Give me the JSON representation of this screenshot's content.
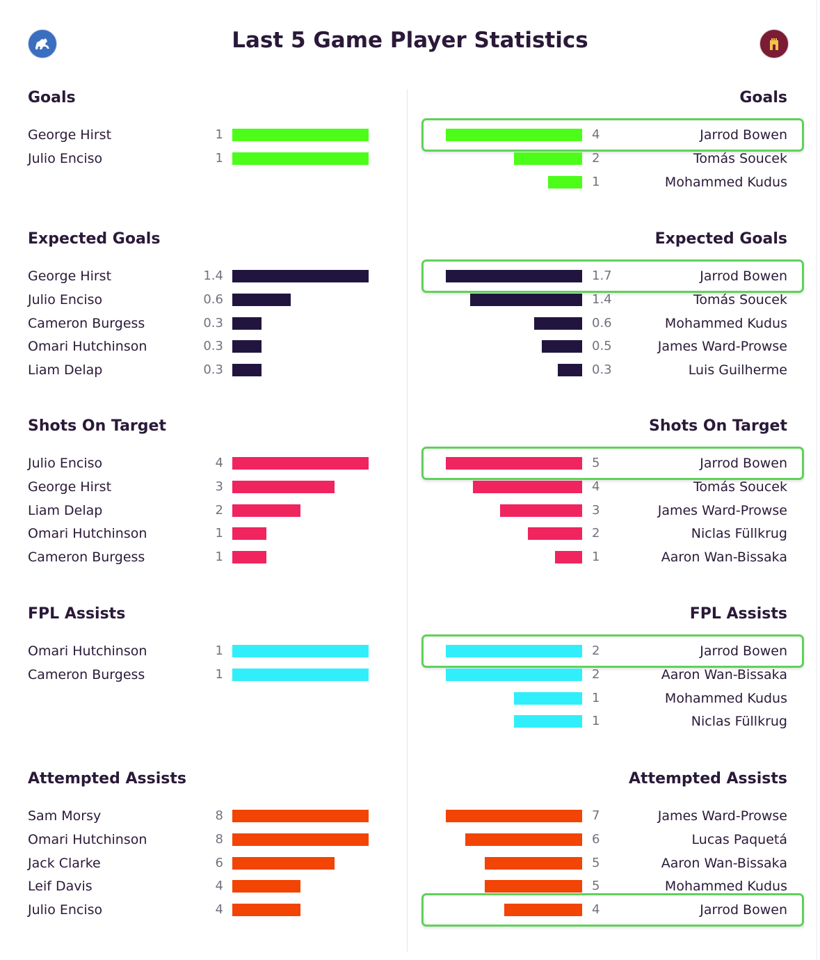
{
  "title": "Last 5 Game Player Statistics",
  "badges": {
    "left": "horse-crest-icon",
    "right": "castle-crest-icon"
  },
  "colors": {
    "goals": "#4cfd1a",
    "expected_goals": "#211540",
    "shots_on_target": "#f0245e",
    "fpl_assists": "#30effa",
    "attempted_assists": "#f24404",
    "highlight": "#5fd15a"
  },
  "chart_data": [
    {
      "type": "bar",
      "orientation": "horizontal",
      "key": "goals",
      "title": "Goals",
      "side": "left",
      "categories": [
        "George Hirst",
        "Julio Enciso"
      ],
      "values": [
        1,
        1
      ],
      "labels": [
        "1",
        "1"
      ]
    },
    {
      "type": "bar",
      "orientation": "horizontal",
      "key": "goals",
      "title": "Goals",
      "side": "right",
      "categories": [
        "Jarrod Bowen",
        "Tomás Soucek",
        "Mohammed Kudus"
      ],
      "values": [
        4,
        2,
        1
      ],
      "labels": [
        "4",
        "2",
        "1"
      ],
      "highlight": "Jarrod Bowen"
    },
    {
      "type": "bar",
      "orientation": "horizontal",
      "key": "expected_goals",
      "title": "Expected Goals",
      "side": "left",
      "categories": [
        "George Hirst",
        "Julio Enciso",
        "Cameron Burgess",
        "Omari Hutchinson",
        "Liam Delap"
      ],
      "values": [
        1.4,
        0.6,
        0.3,
        0.3,
        0.3
      ],
      "labels": [
        "1.4",
        "0.6",
        "0.3",
        "0.3",
        "0.3"
      ]
    },
    {
      "type": "bar",
      "orientation": "horizontal",
      "key": "expected_goals",
      "title": "Expected Goals",
      "side": "right",
      "categories": [
        "Jarrod Bowen",
        "Tomás Soucek",
        "Mohammed Kudus",
        "James Ward-Prowse",
        "Luis Guilherme"
      ],
      "values": [
        1.7,
        1.4,
        0.6,
        0.5,
        0.3
      ],
      "labels": [
        "1.7",
        "1.4",
        "0.6",
        "0.5",
        "0.3"
      ],
      "highlight": "Jarrod Bowen"
    },
    {
      "type": "bar",
      "orientation": "horizontal",
      "key": "shots_on_target",
      "title": "Shots On Target",
      "side": "left",
      "categories": [
        "Julio Enciso",
        "George Hirst",
        "Liam Delap",
        "Omari Hutchinson",
        "Cameron Burgess"
      ],
      "values": [
        4,
        3,
        2,
        1,
        1
      ],
      "labels": [
        "4",
        "3",
        "2",
        "1",
        "1"
      ]
    },
    {
      "type": "bar",
      "orientation": "horizontal",
      "key": "shots_on_target",
      "title": "Shots On Target",
      "side": "right",
      "categories": [
        "Jarrod Bowen",
        "Tomás Soucek",
        "James Ward-Prowse",
        "Niclas Füllkrug",
        "Aaron Wan-Bissaka"
      ],
      "values": [
        5,
        4,
        3,
        2,
        1
      ],
      "labels": [
        "5",
        "4",
        "3",
        "2",
        "1"
      ],
      "highlight": "Jarrod Bowen"
    },
    {
      "type": "bar",
      "orientation": "horizontal",
      "key": "fpl_assists",
      "title": "FPL Assists",
      "side": "left",
      "categories": [
        "Omari Hutchinson",
        "Cameron Burgess"
      ],
      "values": [
        1,
        1
      ],
      "labels": [
        "1",
        "1"
      ]
    },
    {
      "type": "bar",
      "orientation": "horizontal",
      "key": "fpl_assists",
      "title": "FPL Assists",
      "side": "right",
      "categories": [
        "Jarrod Bowen",
        "Aaron Wan-Bissaka",
        "Mohammed Kudus",
        "Niclas Füllkrug"
      ],
      "values": [
        2,
        2,
        1,
        1
      ],
      "labels": [
        "2",
        "2",
        "1",
        "1"
      ],
      "highlight": "Jarrod Bowen"
    },
    {
      "type": "bar",
      "orientation": "horizontal",
      "key": "attempted_assists",
      "title": "Attempted Assists",
      "side": "left",
      "categories": [
        "Sam Morsy",
        "Omari Hutchinson",
        "Jack Clarke",
        "Leif Davis",
        "Julio Enciso"
      ],
      "values": [
        8,
        8,
        6,
        4,
        4
      ],
      "labels": [
        "8",
        "8",
        "6",
        "4",
        "4"
      ]
    },
    {
      "type": "bar",
      "orientation": "horizontal",
      "key": "attempted_assists",
      "title": "Attempted Assists",
      "side": "right",
      "categories": [
        "James Ward-Prowse",
        "Lucas Paquetá",
        "Aaron Wan-Bissaka",
        "Mohammed Kudus",
        "Jarrod Bowen"
      ],
      "values": [
        7,
        6,
        5,
        5,
        4
      ],
      "labels": [
        "7",
        "6",
        "5",
        "5",
        "4"
      ],
      "highlight": "Jarrod Bowen"
    }
  ]
}
